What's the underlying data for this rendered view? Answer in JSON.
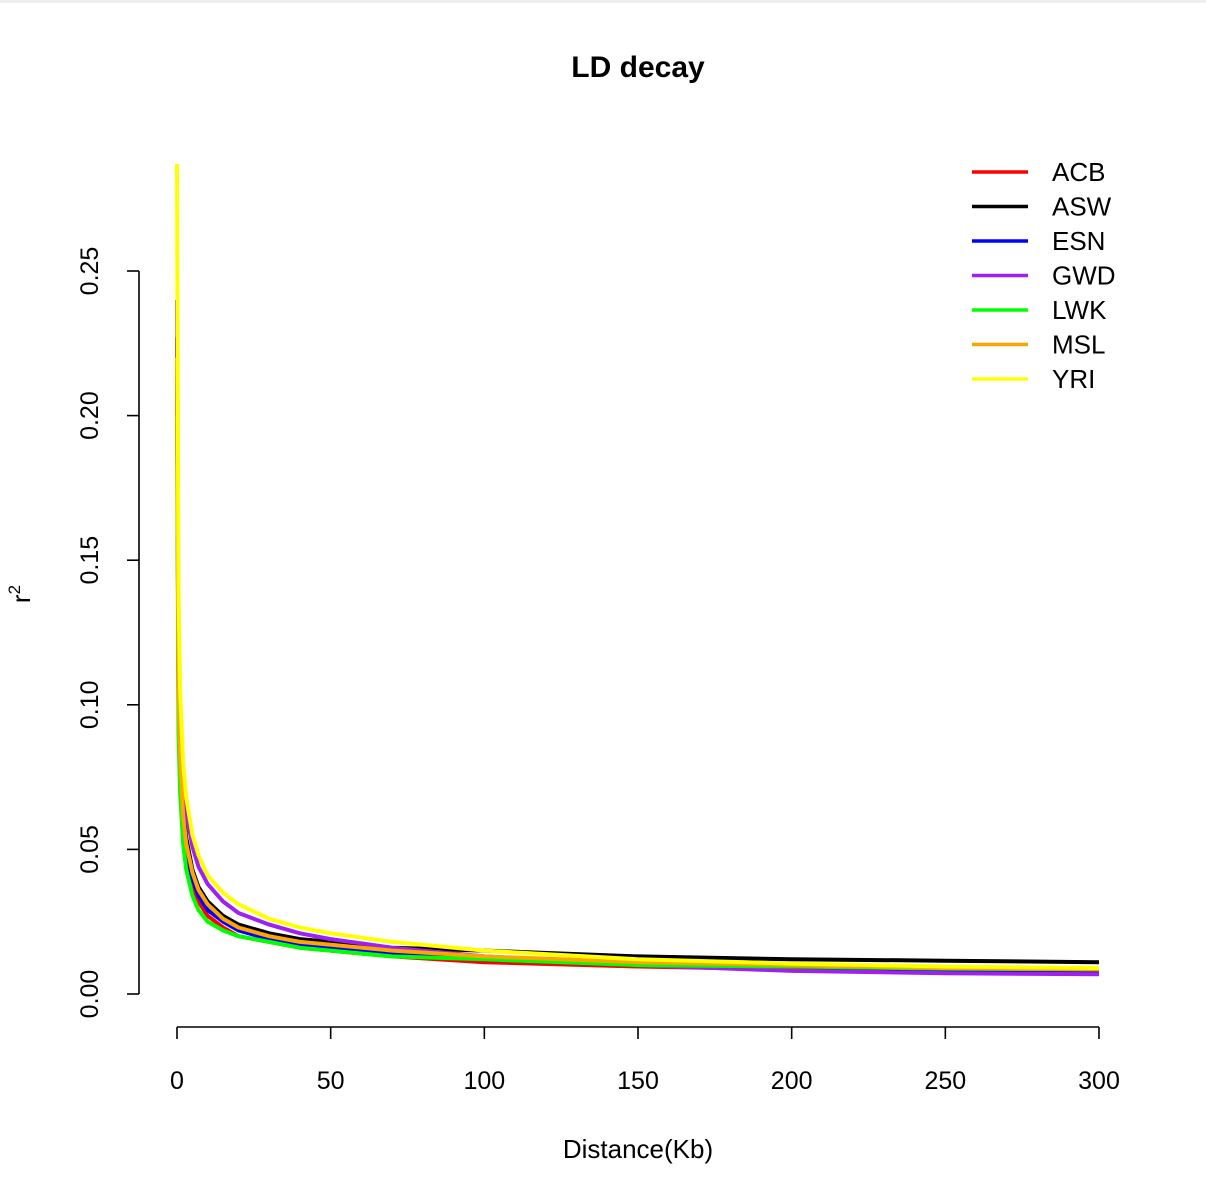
{
  "chart_data": {
    "type": "line",
    "title": "LD decay",
    "xlabel": "Distance(Kb)",
    "ylabel": "r",
    "ylabel_superscript": "2",
    "xlim": [
      0,
      300
    ],
    "ylim": [
      0,
      0.25
    ],
    "xticks": [
      "0",
      "50",
      "100",
      "150",
      "200",
      "250",
      "300"
    ],
    "yticks": [
      "0.00",
      "0.05",
      "0.10",
      "0.15",
      "0.20",
      "0.25"
    ],
    "grid": false,
    "legend_position": "top-right",
    "x": [
      0,
      0.5,
      1,
      2,
      3,
      5,
      7,
      10,
      15,
      20,
      30,
      40,
      50,
      70,
      100,
      150,
      200,
      250,
      300
    ],
    "series": [
      {
        "name": "ACB",
        "color": "#ff0000",
        "values": [
          0.22,
          0.1,
          0.078,
          0.058,
          0.048,
          0.038,
          0.032,
          0.027,
          0.023,
          0.02,
          0.018,
          0.016,
          0.015,
          0.013,
          0.011,
          0.0095,
          0.0085,
          0.0075,
          0.007
        ]
      },
      {
        "name": "ASW",
        "color": "#000000",
        "values": [
          0.227,
          0.11,
          0.085,
          0.064,
          0.054,
          0.043,
          0.037,
          0.032,
          0.027,
          0.024,
          0.021,
          0.019,
          0.018,
          0.016,
          0.015,
          0.013,
          0.012,
          0.0115,
          0.011
        ]
      },
      {
        "name": "ESN",
        "color": "#0000ff",
        "values": [
          0.22,
          0.1,
          0.08,
          0.06,
          0.05,
          0.04,
          0.034,
          0.029,
          0.025,
          0.022,
          0.019,
          0.017,
          0.016,
          0.014,
          0.012,
          0.01,
          0.0095,
          0.0085,
          0.008
        ]
      },
      {
        "name": "GWD",
        "color": "#a020f0",
        "values": [
          0.24,
          0.12,
          0.095,
          0.074,
          0.063,
          0.051,
          0.044,
          0.038,
          0.032,
          0.028,
          0.024,
          0.021,
          0.019,
          0.016,
          0.013,
          0.01,
          0.008,
          0.0072,
          0.0068
        ]
      },
      {
        "name": "LWK",
        "color": "#00ff00",
        "values": [
          0.2,
          0.09,
          0.07,
          0.052,
          0.043,
          0.034,
          0.029,
          0.025,
          0.022,
          0.02,
          0.018,
          0.016,
          0.015,
          0.013,
          0.012,
          0.01,
          0.0095,
          0.0088,
          0.0085
        ]
      },
      {
        "name": "MSL",
        "color": "#ffa500",
        "values": [
          0.22,
          0.105,
          0.082,
          0.062,
          0.052,
          0.042,
          0.036,
          0.031,
          0.026,
          0.023,
          0.02,
          0.018,
          0.017,
          0.015,
          0.013,
          0.011,
          0.01,
          0.009,
          0.0085
        ]
      },
      {
        "name": "YRI",
        "color": "#ffff00",
        "values": [
          0.287,
          0.14,
          0.105,
          0.08,
          0.068,
          0.055,
          0.048,
          0.041,
          0.035,
          0.031,
          0.026,
          0.023,
          0.021,
          0.018,
          0.015,
          0.012,
          0.0105,
          0.0095,
          0.009
        ]
      }
    ]
  }
}
